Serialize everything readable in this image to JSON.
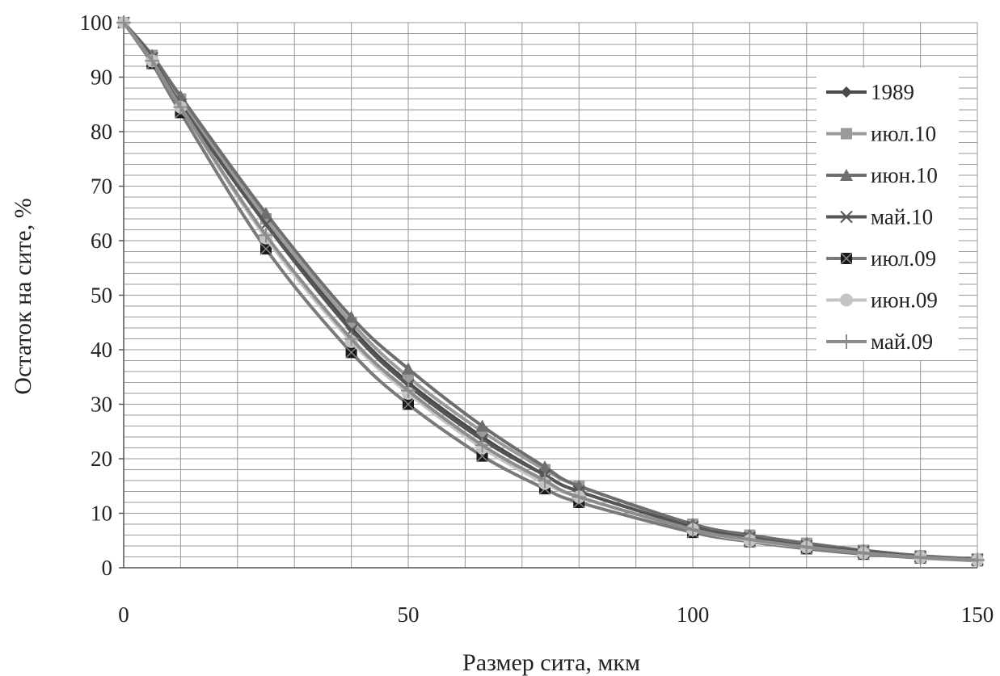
{
  "chart_data": {
    "type": "line",
    "xlabel": "Размер сита, мкм",
    "ylabel": "Остаток на сите, %",
    "xlim": [
      0,
      150
    ],
    "ylim": [
      0,
      100
    ],
    "x_ticks": [
      "0",
      "50",
      "100",
      "150"
    ],
    "y_ticks": [
      "0",
      "10",
      "20",
      "30",
      "40",
      "50",
      "60",
      "70",
      "80",
      "90",
      "100"
    ],
    "grid": true,
    "legend_position": "right",
    "x": [
      0,
      5,
      10,
      25,
      40,
      50,
      63,
      74,
      80,
      100,
      110,
      120,
      130,
      140,
      150
    ],
    "series": [
      {
        "name": "1989",
        "marker": "diamond",
        "color": "#4a4a4a",
        "values": [
          100,
          93.5,
          85.5,
          63.5,
          44,
          34,
          24,
          17,
          14,
          7.5,
          5.5,
          4,
          3,
          2,
          1.5
        ]
      },
      {
        "name": "июл.10",
        "marker": "square",
        "color": "#9a9a9a",
        "values": [
          100,
          94,
          86,
          64,
          45,
          35,
          25,
          18,
          15,
          8,
          6,
          4.5,
          3.2,
          2.2,
          1.6
        ]
      },
      {
        "name": "июн.10",
        "marker": "triangle",
        "color": "#6e6e6e",
        "values": [
          100,
          94,
          86.5,
          65,
          46,
          36.5,
          26,
          18.5,
          15,
          8,
          6,
          4.5,
          3.2,
          2.2,
          1.6
        ]
      },
      {
        "name": "май.10",
        "marker": "x",
        "color": "#555555",
        "values": [
          100,
          93.5,
          85,
          63,
          43.5,
          33.5,
          23.5,
          17,
          14,
          7.5,
          5.5,
          4,
          3,
          2,
          1.5
        ]
      },
      {
        "name": "июл.09",
        "marker": "square-x",
        "color": "#7a7a7a",
        "values": [
          100,
          92.5,
          83.5,
          58.5,
          39.5,
          30,
          20.5,
          14.5,
          12,
          6.5,
          4.8,
          3.5,
          2.5,
          1.8,
          1.3
        ]
      },
      {
        "name": "июн.09",
        "marker": "circle",
        "color": "#c4c4c4",
        "values": [
          100,
          93,
          84.5,
          60.5,
          41.5,
          32,
          22,
          15.5,
          13,
          7,
          5,
          3.8,
          2.7,
          1.9,
          1.4
        ]
      },
      {
        "name": "май.09",
        "marker": "plus",
        "color": "#8c8c8c",
        "values": [
          100,
          93,
          84.5,
          61,
          42,
          32.5,
          22.5,
          16,
          13,
          7,
          5.2,
          3.8,
          2.7,
          1.9,
          1.4
        ]
      }
    ]
  }
}
